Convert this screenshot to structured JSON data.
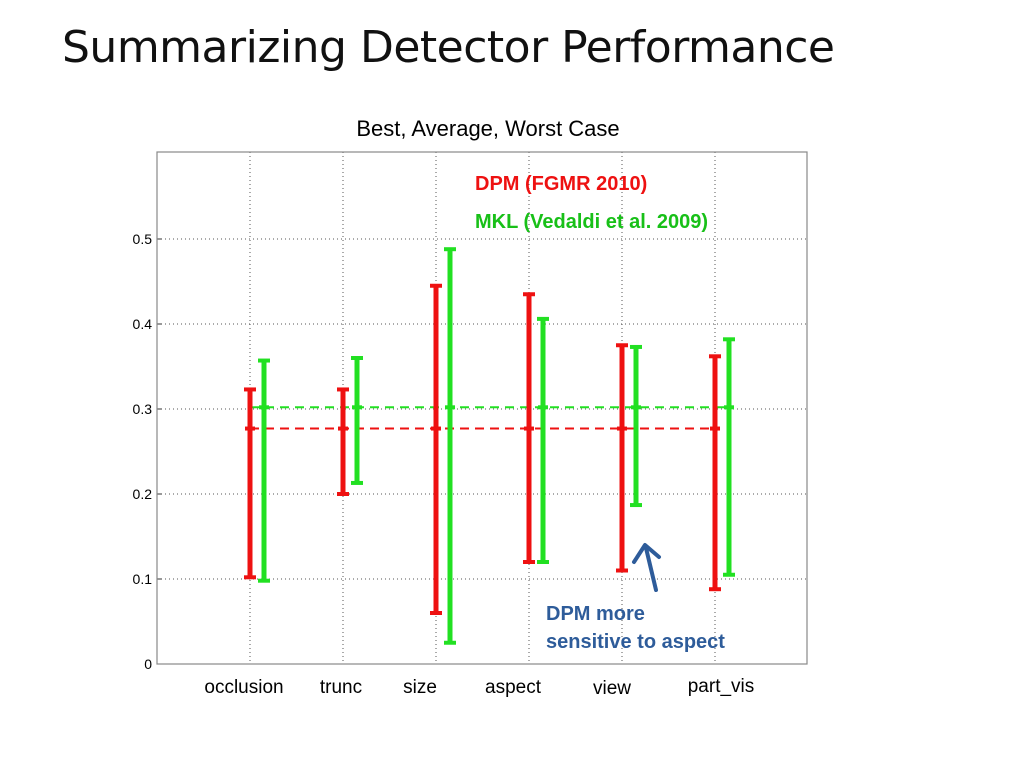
{
  "slide": {
    "title": "Summarizing Detector Performance"
  },
  "colors": {
    "dpm": "#ee1111",
    "mkl": "#22e022",
    "note": "#2e5c9a"
  },
  "annotation": {
    "line1": "DPM more",
    "line2": "sensitive to aspect",
    "arrow_icon": "arrow-up-icon"
  },
  "chart_data": {
    "type": "errorbar",
    "title": "Best, Average, Worst Case",
    "xlabel": "",
    "ylabel": "",
    "ylim": [
      0,
      0.6
    ],
    "yticks": [
      "0",
      "0.1",
      "0.2",
      "0.3",
      "0.4",
      "0.5"
    ],
    "grid": true,
    "legend": "top-right",
    "categories": [
      "occlusion",
      "trunc",
      "size",
      "aspect",
      "view",
      "part_vis"
    ],
    "series": [
      {
        "name": "DPM (FGMR 2010)",
        "color": "#ee1111",
        "average": 0.277,
        "worst": [
          0.102,
          0.2,
          0.06,
          0.12,
          0.11,
          0.088
        ],
        "best": [
          0.323,
          0.323,
          0.445,
          0.435,
          0.375,
          0.362
        ]
      },
      {
        "name": "MKL (Vedaldi et al. 2009)",
        "color": "#22e022",
        "average": 0.302,
        "worst": [
          0.098,
          0.213,
          0.025,
          0.12,
          0.187,
          0.105
        ],
        "best": [
          0.357,
          0.36,
          0.488,
          0.406,
          0.373,
          0.382
        ]
      }
    ]
  }
}
